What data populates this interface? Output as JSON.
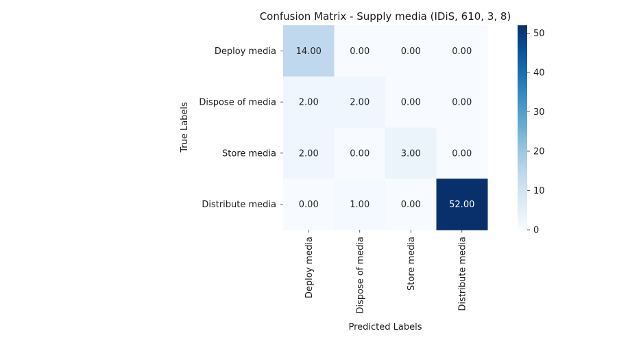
{
  "chart_data": {
    "type": "heatmap",
    "title": "Confusion Matrix - Supply media (IDiS, 610, 3, 8)",
    "xlabel": "Predicted Labels",
    "ylabel": "True Labels",
    "x_categories": [
      "Deploy media",
      "Dispose of media",
      "Store media",
      "Distribute media"
    ],
    "y_categories": [
      "Deploy media",
      "Dispose of media",
      "Store media",
      "Distribute media"
    ],
    "values": [
      [
        14,
        0,
        0,
        0
      ],
      [
        2,
        2,
        0,
        0
      ],
      [
        2,
        0,
        3,
        0
      ],
      [
        0,
        1,
        0,
        52
      ]
    ],
    "value_format": "2 decimals",
    "colormap": "Blues",
    "vmin": 0,
    "vmax": 52,
    "colorbar_ticks": [
      0,
      10,
      20,
      30,
      40,
      50
    ]
  }
}
